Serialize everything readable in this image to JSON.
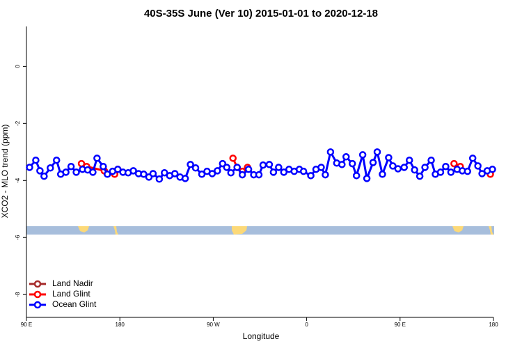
{
  "chart_data": {
    "type": "line",
    "title": "40S-35S June (Ver 10)   2015-01-01 to 2020-12-18",
    "x_label": "Longitude",
    "y_label": "XCO2 - MLO trend (ppm)",
    "xlim": [
      90,
      540
    ],
    "xticks": [
      {
        "value": 90,
        "label": "90 E"
      },
      180,
      {
        "value": 270,
        "label": "90 W"
      },
      {
        "value": 360,
        "label": "0"
      },
      {
        "value": 450,
        "label": "90 E"
      },
      {
        "value": 540,
        "label": "180"
      }
    ],
    "ylim": [
      -8.8,
      1.4
    ],
    "yticks": [
      0,
      -2,
      -4,
      -6,
      -8
    ],
    "legend": "bottom-left",
    "series": [
      {
        "name": "Land Nadir",
        "color": "#a52a2a",
        "x": [],
        "values": []
      },
      {
        "name": "Land Glint",
        "color": "#ff0000",
        "x": [
          143,
          148,
          165,
          null,
          175,
          178,
          null,
          289,
          293,
          298,
          303,
          null,
          502,
          508,
          null,
          537
        ],
        "values": [
          -3.41,
          -3.51,
          -3.66,
          null,
          -3.78,
          -3.61,
          null,
          -3.22,
          -3.54,
          -3.68,
          -3.54,
          null,
          -3.41,
          -3.51,
          null,
          -3.78
        ]
      },
      {
        "name": "Ocean Glint",
        "color": "#0000ff",
        "x": [
          93,
          99,
          103,
          107,
          113,
          119,
          123,
          128,
          133,
          138,
          144,
          149,
          154,
          158,
          164,
          168,
          173,
          178,
          183,
          188,
          193,
          198,
          203,
          208,
          212,
          218,
          223,
          228,
          233,
          238,
          243,
          248,
          253,
          259,
          264,
          269,
          274,
          279,
          283,
          287,
          293,
          298,
          304,
          309,
          314,
          318,
          324,
          328,
          333,
          338,
          343,
          348,
          353,
          357,
          364,
          369,
          374,
          378,
          383,
          389,
          394,
          398,
          404,
          408,
          414,
          418,
          424,
          428,
          433,
          439,
          443,
          448,
          454,
          459,
          464,
          469,
          474,
          480,
          484,
          489,
          494,
          499,
          505,
          510,
          515,
          520,
          525,
          529,
          534,
          539
        ],
        "values": [
          -3.54,
          -3.29,
          -3.66,
          -3.85,
          -3.56,
          -3.29,
          -3.78,
          -3.71,
          -3.51,
          -3.71,
          -3.61,
          -3.63,
          -3.71,
          -3.22,
          -3.51,
          -3.78,
          -3.68,
          -3.61,
          -3.71,
          -3.73,
          -3.66,
          -3.76,
          -3.78,
          -3.88,
          -3.76,
          -3.95,
          -3.73,
          -3.83,
          -3.76,
          -3.88,
          -3.93,
          -3.44,
          -3.56,
          -3.78,
          -3.68,
          -3.76,
          -3.66,
          -3.41,
          -3.54,
          -3.73,
          -3.54,
          -3.8,
          -3.61,
          -3.8,
          -3.8,
          -3.46,
          -3.44,
          -3.71,
          -3.54,
          -3.71,
          -3.61,
          -3.68,
          -3.61,
          -3.68,
          -3.83,
          -3.61,
          -3.54,
          -3.8,
          -3.0,
          -3.39,
          -3.44,
          -3.17,
          -3.41,
          -3.83,
          -3.1,
          -3.93,
          -3.37,
          -3.0,
          -3.78,
          -3.2,
          -3.49,
          -3.59,
          -3.54,
          -3.29,
          -3.63,
          -3.85,
          -3.54,
          -3.29,
          -3.78,
          -3.71,
          -3.51,
          -3.71,
          -3.61,
          -3.66,
          -3.68,
          -3.22,
          -3.49,
          -3.76,
          -3.66,
          -3.61
        ]
      }
    ]
  }
}
